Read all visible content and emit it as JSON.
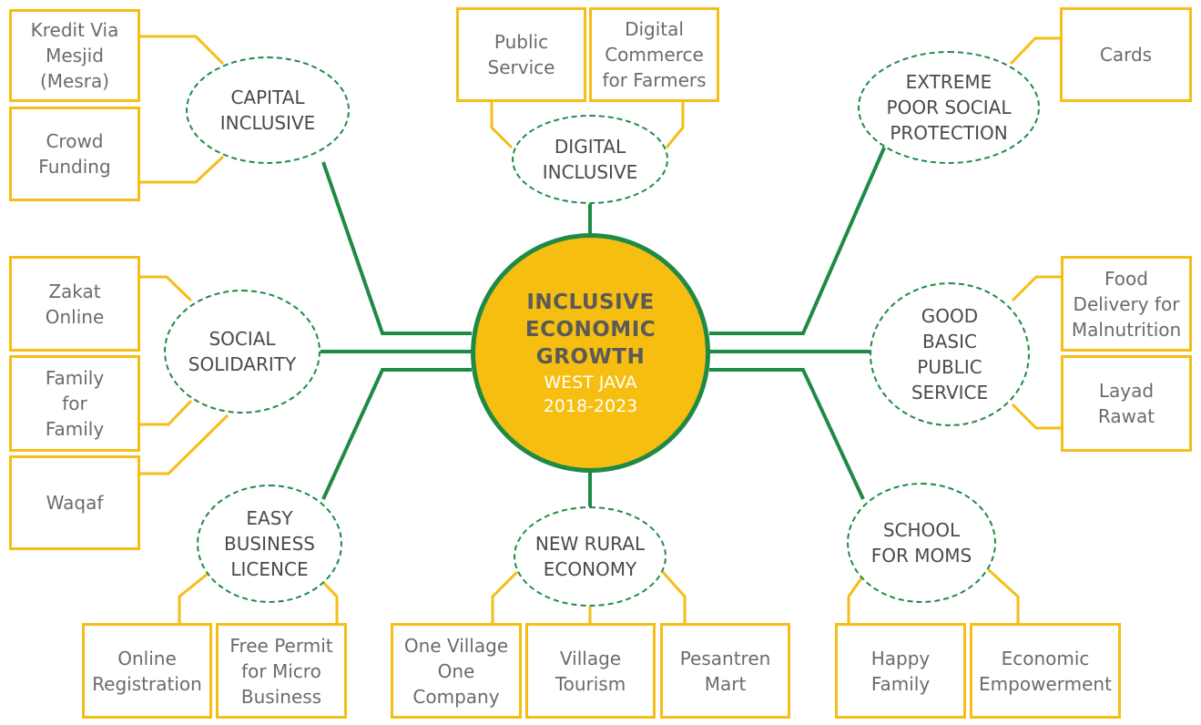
{
  "center": {
    "title": "INCLUSIVE\nECONOMIC\nGROWTH",
    "subtitle": "WEST JAVA\n2018-2023"
  },
  "colors": {
    "green": "#1f8a46",
    "yellow": "#f5be16",
    "hub": "#f5be10",
    "text": "#6b6b6b"
  },
  "categories": {
    "capital_inclusive": "CAPITAL\nINCLUSIVE",
    "digital_inclusive": "DIGITAL\nINCLUSIVE",
    "extreme_poor": "EXTREME\nPOOR SOCIAL\nPROTECTION",
    "social_solidarity": "SOCIAL\nSOLIDARITY",
    "good_basic": "GOOD\nBASIC\nPUBLIC\nSERVICE",
    "easy_business": "EASY\nBUSINESS\nLICENCE",
    "new_rural": "NEW RURAL\nECONOMY",
    "school_moms": "SCHOOL\nFOR MOMS"
  },
  "programs": {
    "kredit_via_mesjid": "Kredit Via\nMesjid\n(Mesra)",
    "crowd_funding": "Crowd\nFunding",
    "public_service": "Public\nService",
    "digital_commerce": "Digital\nCommerce\nfor Farmers",
    "cards": "Cards",
    "zakat_online": "Zakat\nOnline",
    "family_for_family": "Family\nfor\nFamily",
    "waqaf": "Waqaf",
    "food_delivery": "Food\nDelivery for\nMalnutrition",
    "layad_rawat": "Layad\nRawat",
    "online_registration": "Online\nRegistration",
    "free_permit": "Free Permit\nfor Micro\nBusiness",
    "one_village": "One Village\nOne\nCompany",
    "village_tourism": "Village\nTourism",
    "pesantren_mart": "Pesantren\nMart",
    "happy_family": "Happy\nFamily",
    "economic_empowerment": "Economic\nEmpowerment"
  }
}
